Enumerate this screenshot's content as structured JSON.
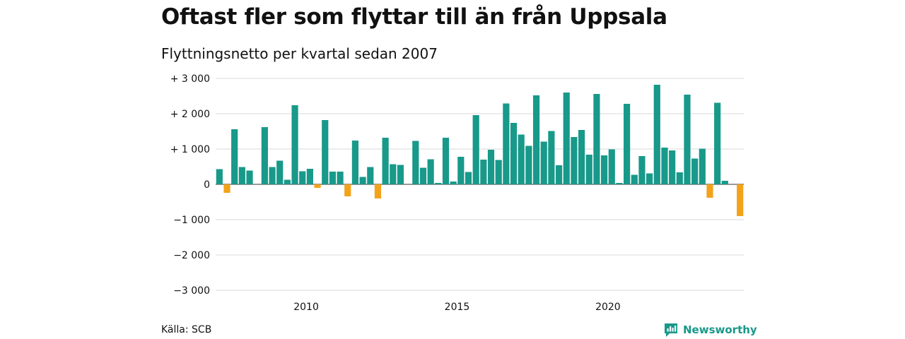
{
  "title": "Oftast fler som flyttar till än från Uppsala",
  "subtitle": "Flyttningsnetto per kvartal sedan 2007",
  "source": "Källa: SCB",
  "brand": "Newsworthy",
  "colors": {
    "positive": "#18998a",
    "negative": "#f4a21a",
    "grid": "#d9d9d9"
  },
  "chart_data": {
    "type": "bar",
    "title": "Oftast fler som flyttar till än från Uppsala",
    "subtitle": "Flyttningsnetto per kvartal sedan 2007",
    "ylim": [
      -3000,
      3000
    ],
    "y_ticks": [
      {
        "value": 3000,
        "label": "+ 3 000"
      },
      {
        "value": 2000,
        "label": "+ 2 000"
      },
      {
        "value": 1000,
        "label": "+ 1 000"
      },
      {
        "value": 0,
        "label": "0"
      },
      {
        "value": -1000,
        "label": "−1 000"
      },
      {
        "value": -2000,
        "label": "−2 000"
      },
      {
        "value": -3000,
        "label": "−3 000"
      }
    ],
    "x_ticks": [
      {
        "label": "2010",
        "index": 11.5
      },
      {
        "label": "2015",
        "index": 31.5
      },
      {
        "label": "2020",
        "index": 51.5
      }
    ],
    "grid": true,
    "quarters_start": "2007 Q1",
    "values": [
      430,
      -240,
      1560,
      490,
      390,
      0,
      1620,
      490,
      670,
      130,
      2240,
      370,
      440,
      -100,
      1820,
      360,
      360,
      -340,
      1240,
      210,
      490,
      -400,
      1320,
      570,
      550,
      0,
      1230,
      470,
      710,
      40,
      1320,
      80,
      780,
      350,
      1960,
      700,
      980,
      690,
      2290,
      1740,
      1410,
      1090,
      2520,
      1210,
      1510,
      540,
      2600,
      1340,
      1540,
      840,
      2560,
      820,
      990,
      40,
      2280,
      270,
      800,
      310,
      2820,
      1040,
      960,
      340,
      2540,
      730,
      1010,
      -380,
      2310,
      100,
      0,
      -900
    ]
  }
}
